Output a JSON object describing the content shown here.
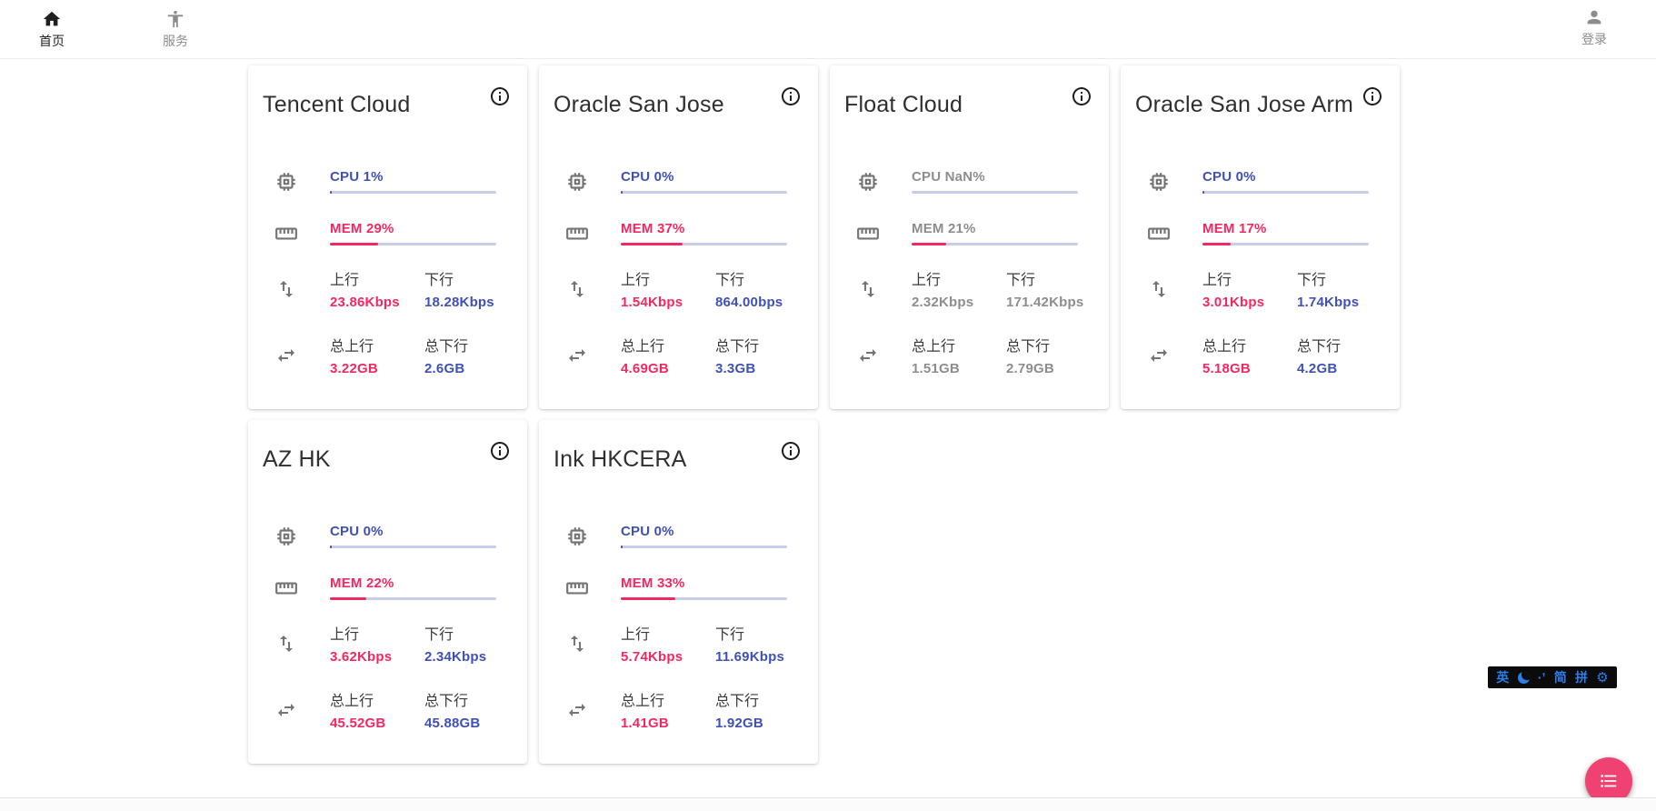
{
  "navbar": {
    "home": {
      "label": "首页",
      "icon": "home-icon"
    },
    "services": {
      "label": "服务",
      "icon": "accessibility-icon"
    },
    "login": {
      "label": "登录",
      "icon": "account-icon"
    }
  },
  "field_labels": {
    "upload": "上行",
    "download": "下行",
    "total_upload": "总上行",
    "total_download": "总下行"
  },
  "servers": [
    {
      "name": "Tencent Cloud",
      "cpu_label": "CPU 1%",
      "cpu_pct": 1,
      "mem_label": "MEM 29%",
      "mem_pct": 29,
      "upload": "23.86Kbps",
      "download": "18.28Kbps",
      "total_upload": "3.22GB",
      "total_download": "2.6GB",
      "offline": false
    },
    {
      "name": "Oracle San Jose",
      "cpu_label": "CPU 0%",
      "cpu_pct": 0,
      "mem_label": "MEM 37%",
      "mem_pct": 37,
      "upload": "1.54Kbps",
      "download": "864.00bps",
      "total_upload": "4.69GB",
      "total_download": "3.3GB",
      "offline": false
    },
    {
      "name": "Float Cloud",
      "cpu_label": "CPU NaN%",
      "cpu_pct": null,
      "mem_label": "MEM 21%",
      "mem_pct": 21,
      "upload": "2.32Kbps",
      "download": "171.42Kbps",
      "total_upload": "1.51GB",
      "total_download": "2.79GB",
      "offline": true
    },
    {
      "name": "Oracle San Jose Arm",
      "cpu_label": "CPU 0%",
      "cpu_pct": 0,
      "mem_label": "MEM 17%",
      "mem_pct": 17,
      "upload": "3.01Kbps",
      "download": "1.74Kbps",
      "total_upload": "5.18GB",
      "total_download": "4.2GB",
      "offline": false
    },
    {
      "name": "AZ HK",
      "cpu_label": "CPU 0%",
      "cpu_pct": 0,
      "mem_label": "MEM 22%",
      "mem_pct": 22,
      "upload": "3.62Kbps",
      "download": "2.34Kbps",
      "total_upload": "45.52GB",
      "total_download": "45.88GB",
      "offline": false
    },
    {
      "name": "Ink HKCERA",
      "cpu_label": "CPU 0%",
      "cpu_pct": 0,
      "mem_label": "MEM 33%",
      "mem_pct": 33,
      "upload": "5.74Kbps",
      "download": "11.69Kbps",
      "total_upload": "1.41GB",
      "total_download": "1.92GB",
      "offline": false
    }
  ],
  "ime_bar": {
    "items": [
      {
        "type": "text",
        "label": "英"
      },
      {
        "type": "moon-icon"
      },
      {
        "type": "text",
        "label": "·ʼ"
      },
      {
        "type": "text",
        "label": "简"
      },
      {
        "type": "text",
        "label": "拼"
      },
      {
        "type": "gear-icon"
      }
    ]
  },
  "fab": {
    "icon": "format-list-bulleted-icon"
  },
  "colors": {
    "accent_blue": "#3f51b5",
    "accent_pink": "#f02962",
    "bar_track": "#c7cce9",
    "fab_pink": "#f04173",
    "ime_blue": "#2b7de9",
    "offline_gray": "#8d8d8d"
  }
}
